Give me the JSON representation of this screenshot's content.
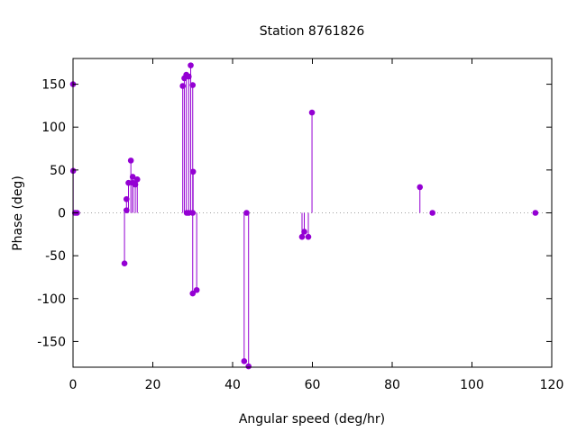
{
  "colors": {
    "series": "#9400d3",
    "axis": "#000000",
    "zero_line": "#a0a0a0"
  },
  "chart_data": {
    "type": "scatter",
    "style": "impulses-with-points",
    "title": "Station 8761826",
    "xlabel": "Angular speed (deg/hr)",
    "ylabel": "Phase (deg)",
    "xlim": [
      0,
      120
    ],
    "ylim": [
      -180,
      180
    ],
    "xticks": [
      0,
      20,
      40,
      60,
      80,
      100,
      120
    ],
    "yticks": [
      -150,
      -100,
      -50,
      0,
      50,
      100,
      150
    ],
    "xtick_labels": [
      "0",
      "20",
      "40",
      "60",
      "80",
      "100",
      "120"
    ],
    "ytick_labels": [
      "-150",
      "-100",
      "-50",
      "0",
      "50",
      "100",
      "150"
    ],
    "grid": false,
    "zero_line": true,
    "points": [
      {
        "x": 0.0,
        "y": 150
      },
      {
        "x": 0.04,
        "y": 49
      },
      {
        "x": 0.5,
        "y": 0
      },
      {
        "x": 1.0,
        "y": 0
      },
      {
        "x": 12.9,
        "y": -59
      },
      {
        "x": 13.4,
        "y": 3
      },
      {
        "x": 13.4,
        "y": 16
      },
      {
        "x": 13.9,
        "y": 35
      },
      {
        "x": 14.5,
        "y": 61
      },
      {
        "x": 14.96,
        "y": 42
      },
      {
        "x": 15.0,
        "y": 35
      },
      {
        "x": 15.6,
        "y": 33
      },
      {
        "x": 16.1,
        "y": 39
      },
      {
        "x": 27.5,
        "y": 148
      },
      {
        "x": 27.9,
        "y": 157
      },
      {
        "x": 28.4,
        "y": 161
      },
      {
        "x": 28.5,
        "y": 0
      },
      {
        "x": 29.0,
        "y": 0
      },
      {
        "x": 29.0,
        "y": 159
      },
      {
        "x": 29.5,
        "y": 172
      },
      {
        "x": 30.0,
        "y": 149
      },
      {
        "x": 30.0,
        "y": 0
      },
      {
        "x": 30.1,
        "y": 48
      },
      {
        "x": 30.0,
        "y": -94
      },
      {
        "x": 31.0,
        "y": -90
      },
      {
        "x": 42.9,
        "y": -173
      },
      {
        "x": 43.5,
        "y": 0
      },
      {
        "x": 44.0,
        "y": -179
      },
      {
        "x": 57.4,
        "y": -28
      },
      {
        "x": 57.97,
        "y": -22
      },
      {
        "x": 58.98,
        "y": -28
      },
      {
        "x": 59.9,
        "y": 117
      },
      {
        "x": 86.95,
        "y": 30
      },
      {
        "x": 90.1,
        "y": 0
      },
      {
        "x": 115.9,
        "y": 0
      }
    ]
  }
}
